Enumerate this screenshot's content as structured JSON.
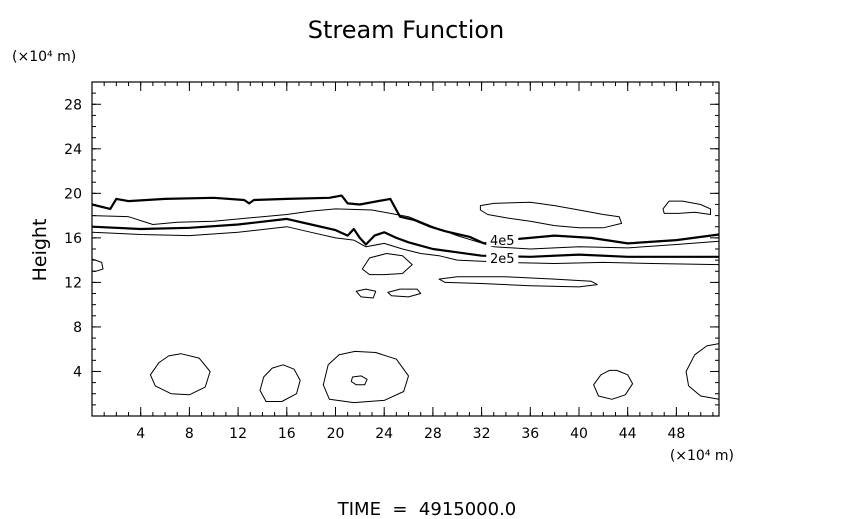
{
  "chart_data": {
    "type": "contour",
    "title": "Stream Function",
    "ylabel": "Height",
    "xlabel": "",
    "x_unit": "(×10⁴ m)",
    "y_unit": "(×10⁴ m)",
    "xlim": [
      0,
      51.5
    ],
    "ylim": [
      0,
      30
    ],
    "x_ticks": [
      4,
      8,
      12,
      16,
      20,
      24,
      28,
      32,
      36,
      40,
      44,
      48
    ],
    "y_ticks": [
      4,
      8,
      12,
      16,
      20,
      24,
      28
    ],
    "x_minor_step": 1,
    "y_minor_step": 1,
    "footer": "TIME  =  4915000.0",
    "contour_labels": [
      {
        "text": "4e5",
        "x": 33.7,
        "y": 15.8
      },
      {
        "text": "2e5",
        "x": 33.7,
        "y": 14.2
      }
    ],
    "contours": [
      {
        "name": "upper-bold",
        "bold": true,
        "closed": false,
        "points": [
          [
            0,
            19
          ],
          [
            1.5,
            18.6
          ],
          [
            2,
            19.5
          ],
          [
            3,
            19.3
          ],
          [
            6,
            19.5
          ],
          [
            10,
            19.6
          ],
          [
            12.5,
            19.4
          ],
          [
            12.9,
            19.1
          ],
          [
            13.3,
            19.4
          ],
          [
            16,
            19.5
          ],
          [
            19.5,
            19.6
          ],
          [
            20.5,
            19.8
          ],
          [
            21,
            19.1
          ],
          [
            22,
            19
          ],
          [
            24.5,
            19.5
          ],
          [
            25.3,
            17.9
          ],
          [
            26.5,
            17.6
          ],
          [
            27.8,
            17
          ],
          [
            29,
            16.6
          ],
          [
            31,
            16.1
          ],
          [
            32.2,
            15.5
          ],
          [
            34,
            15.8
          ],
          [
            38,
            16.2
          ],
          [
            41,
            16
          ],
          [
            44,
            15.5
          ],
          [
            48,
            15.8
          ],
          [
            51.5,
            16.3
          ]
        ]
      },
      {
        "name": "upper-thin",
        "bold": false,
        "closed": false,
        "points": [
          [
            0,
            18
          ],
          [
            3,
            17.9
          ],
          [
            5,
            17.2
          ],
          [
            7,
            17.4
          ],
          [
            10,
            17.5
          ],
          [
            14,
            17.9
          ],
          [
            16,
            18.1
          ],
          [
            18,
            18.4
          ],
          [
            20,
            18.6
          ],
          [
            23,
            18.5
          ],
          [
            26,
            17.9
          ],
          [
            28,
            17
          ],
          [
            30,
            16.2
          ],
          [
            33,
            15.2
          ],
          [
            36,
            15
          ],
          [
            40,
            15.2
          ],
          [
            44,
            15.1
          ],
          [
            48,
            15.4
          ],
          [
            51.5,
            15.7
          ]
        ]
      },
      {
        "name": "bold-4e5",
        "bold": true,
        "closed": false,
        "points": [
          [
            0,
            17
          ],
          [
            4,
            16.8
          ],
          [
            8,
            16.9
          ],
          [
            12,
            17.2
          ],
          [
            16,
            17.7
          ],
          [
            18,
            17.2
          ],
          [
            20,
            16.7
          ],
          [
            21,
            16.2
          ],
          [
            21.5,
            16.8
          ],
          [
            22,
            16
          ],
          [
            22.5,
            15.4
          ],
          [
            23.2,
            16.2
          ],
          [
            24,
            16.5
          ],
          [
            25,
            16
          ],
          [
            26,
            15.6
          ],
          [
            27,
            15.3
          ],
          [
            28,
            15
          ],
          [
            30,
            14.7
          ],
          [
            32,
            14.4
          ],
          [
            36,
            14.3
          ],
          [
            40,
            14.5
          ],
          [
            44,
            14.3
          ],
          [
            48,
            14.3
          ],
          [
            51.5,
            14.3
          ]
        ]
      },
      {
        "name": "lower-thin",
        "bold": false,
        "closed": false,
        "points": [
          [
            0,
            16.5
          ],
          [
            4,
            16.3
          ],
          [
            8,
            16.2
          ],
          [
            12,
            16.5
          ],
          [
            16,
            17
          ],
          [
            18,
            16.5
          ],
          [
            20,
            16
          ],
          [
            21.5,
            15.8
          ],
          [
            22.5,
            15.2
          ],
          [
            24,
            15.5
          ],
          [
            25.5,
            15
          ],
          [
            27,
            14.6
          ],
          [
            28.5,
            14.4
          ],
          [
            30,
            14
          ],
          [
            34,
            13.8
          ],
          [
            38,
            13.7
          ],
          [
            42,
            13.8
          ],
          [
            46,
            13.7
          ],
          [
            51.5,
            13.6
          ]
        ]
      },
      {
        "name": "cell-upper-right",
        "bold": false,
        "closed": true,
        "points": [
          [
            31.9,
            18.9
          ],
          [
            33,
            19.1
          ],
          [
            36,
            19.2
          ],
          [
            38,
            18.9
          ],
          [
            40,
            18.5
          ],
          [
            42,
            18.1
          ],
          [
            43.3,
            17.9
          ],
          [
            43.5,
            17.3
          ],
          [
            42,
            16.9
          ],
          [
            40,
            16.9
          ],
          [
            38,
            17.1
          ],
          [
            36,
            17.5
          ],
          [
            34,
            17.8
          ],
          [
            32.5,
            18.1
          ],
          [
            31.9,
            18.5
          ]
        ]
      },
      {
        "name": "cell-far-right",
        "bold": false,
        "closed": true,
        "points": [
          [
            46.9,
            18.6
          ],
          [
            47.4,
            19.3
          ],
          [
            48.5,
            19.3
          ],
          [
            50,
            19
          ],
          [
            50.8,
            18.6
          ],
          [
            50.8,
            18.1
          ],
          [
            49.5,
            18.3
          ],
          [
            48.2,
            18.2
          ],
          [
            47,
            18.2
          ]
        ]
      },
      {
        "name": "cell-mid",
        "bold": false,
        "closed": true,
        "points": [
          [
            22.2,
            13.2
          ],
          [
            22.8,
            14.2
          ],
          [
            24.2,
            14.6
          ],
          [
            25.5,
            14.4
          ],
          [
            26.3,
            13.6
          ],
          [
            25.5,
            12.8
          ],
          [
            24,
            12.7
          ],
          [
            22.8,
            12.7
          ]
        ]
      },
      {
        "name": "band-thin",
        "bold": false,
        "closed": true,
        "points": [
          [
            28.5,
            12.3
          ],
          [
            30,
            12.5
          ],
          [
            34,
            12.5
          ],
          [
            38,
            12.3
          ],
          [
            41,
            12.1
          ],
          [
            41.5,
            11.8
          ],
          [
            40,
            11.6
          ],
          [
            36,
            11.7
          ],
          [
            32,
            11.9
          ],
          [
            29,
            12
          ]
        ]
      },
      {
        "name": "blob-small-1",
        "bold": false,
        "closed": true,
        "points": [
          [
            21.7,
            11.2
          ],
          [
            22.5,
            11.4
          ],
          [
            23.3,
            11.2
          ],
          [
            23.1,
            10.6
          ],
          [
            22.1,
            10.7
          ]
        ]
      },
      {
        "name": "blob-small-2",
        "bold": false,
        "closed": true,
        "points": [
          [
            24.3,
            11.1
          ],
          [
            25.3,
            11.4
          ],
          [
            26.7,
            11.4
          ],
          [
            27,
            11
          ],
          [
            26,
            10.7
          ],
          [
            24.6,
            10.8
          ]
        ]
      },
      {
        "name": "blob-left-edge",
        "bold": false,
        "closed": true,
        "points": [
          [
            0,
            14.1
          ],
          [
            0.8,
            13.8
          ],
          [
            0.9,
            13.2
          ],
          [
            0.3,
            13
          ],
          [
            0,
            13
          ]
        ]
      },
      {
        "name": "bottom-cell-1",
        "bold": false,
        "closed": true,
        "points": [
          [
            7.3,
            5.6
          ],
          [
            8.8,
            5.2
          ],
          [
            9.7,
            4
          ],
          [
            9.3,
            2.6
          ],
          [
            8,
            1.9
          ],
          [
            6.5,
            2
          ],
          [
            5.2,
            2.7
          ],
          [
            4.8,
            3.7
          ],
          [
            5.5,
            4.8
          ],
          [
            6.3,
            5.4
          ]
        ]
      },
      {
        "name": "bottom-cell-2",
        "bold": false,
        "closed": true,
        "points": [
          [
            15.7,
            4.6
          ],
          [
            16.6,
            4.2
          ],
          [
            17.1,
            3.2
          ],
          [
            16.8,
            2
          ],
          [
            15.6,
            1.3
          ],
          [
            14.3,
            1.3
          ],
          [
            13.8,
            2.3
          ],
          [
            14.1,
            3.5
          ],
          [
            14.8,
            4.3
          ]
        ]
      },
      {
        "name": "bottom-cell-3",
        "bold": false,
        "closed": true,
        "points": [
          [
            21.6,
            5.8
          ],
          [
            23.3,
            5.7
          ],
          [
            25,
            5.1
          ],
          [
            26,
            3.6
          ],
          [
            25.6,
            2.2
          ],
          [
            24,
            1.4
          ],
          [
            21.5,
            1.2
          ],
          [
            19.5,
            1.5
          ],
          [
            19,
            2.8
          ],
          [
            19.4,
            4.6
          ],
          [
            20.3,
            5.5
          ]
        ]
      },
      {
        "name": "bottom-cell-3-core",
        "bold": false,
        "closed": true,
        "points": [
          [
            21.4,
            3.5
          ],
          [
            22.1,
            3.6
          ],
          [
            22.6,
            3.3
          ],
          [
            22.4,
            2.8
          ],
          [
            21.7,
            2.8
          ],
          [
            21.3,
            3.1
          ]
        ]
      },
      {
        "name": "bottom-cell-4",
        "bold": false,
        "closed": true,
        "points": [
          [
            43.1,
            4.1
          ],
          [
            44,
            3.7
          ],
          [
            44.4,
            2.9
          ],
          [
            43.8,
            1.9
          ],
          [
            42.7,
            1.5
          ],
          [
            41.6,
            1.8
          ],
          [
            41.2,
            2.8
          ],
          [
            41.8,
            3.7
          ],
          [
            42.5,
            4.1
          ]
        ]
      },
      {
        "name": "bottom-cell-5",
        "bold": false,
        "closed": true,
        "points": [
          [
            51.5,
            6.5
          ],
          [
            50.5,
            6.3
          ],
          [
            49.5,
            5.5
          ],
          [
            48.8,
            4
          ],
          [
            49,
            2.7
          ],
          [
            50,
            1.8
          ],
          [
            51.5,
            1.5
          ]
        ]
      }
    ]
  }
}
